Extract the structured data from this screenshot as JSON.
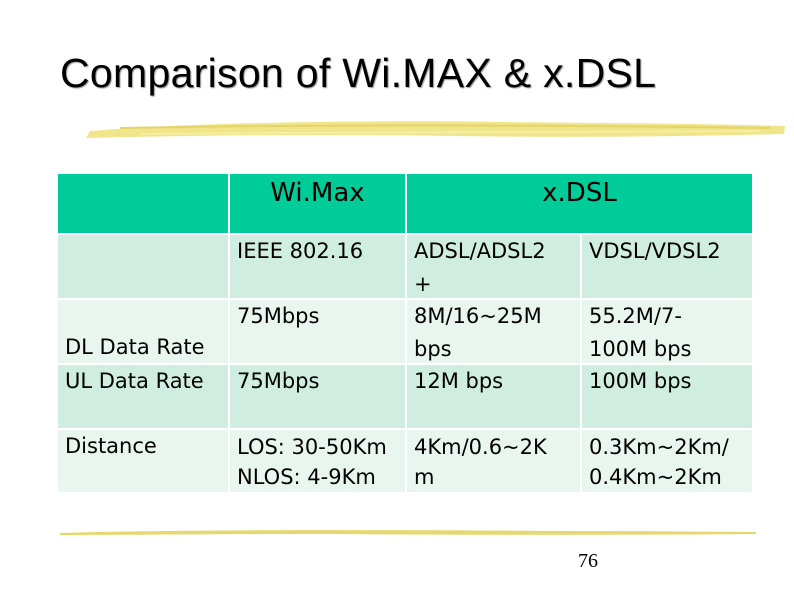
{
  "slide": {
    "title": "Comparison of Wi.MAX & x.DSL",
    "page_number": "76"
  },
  "table": {
    "headers": {
      "col0": "",
      "wimax": "Wi.Max",
      "xdsl": "x.DSL"
    },
    "rows": [
      {
        "label": "",
        "wimax": "IEEE 802.16",
        "xdsl_a": "ADSL/ADSL2\n+",
        "xdsl_b": "VDSL/VDSL2"
      },
      {
        "label": "DL Data Rate",
        "wimax": "75Mbps",
        "xdsl_a": "8M/16~25M\nbps",
        "xdsl_b": "55.2M/7-\n100M bps"
      },
      {
        "label": "UL Data Rate",
        "wimax": "75Mbps",
        "xdsl_a": "12M bps",
        "xdsl_b": "100M bps"
      },
      {
        "label": "Distance",
        "wimax": "LOS: 30-50Km\nNLOS: 4-9Km",
        "xdsl_a": "4Km/0.6~2K\nm",
        "xdsl_b": "0.3Km~2Km/\n0.4Km~2Km"
      }
    ]
  },
  "colors": {
    "header_bg": "#00cc99",
    "band_dark": "#cfeee1",
    "band_light": "#e8f6ef",
    "brush": "#f0e58a"
  }
}
